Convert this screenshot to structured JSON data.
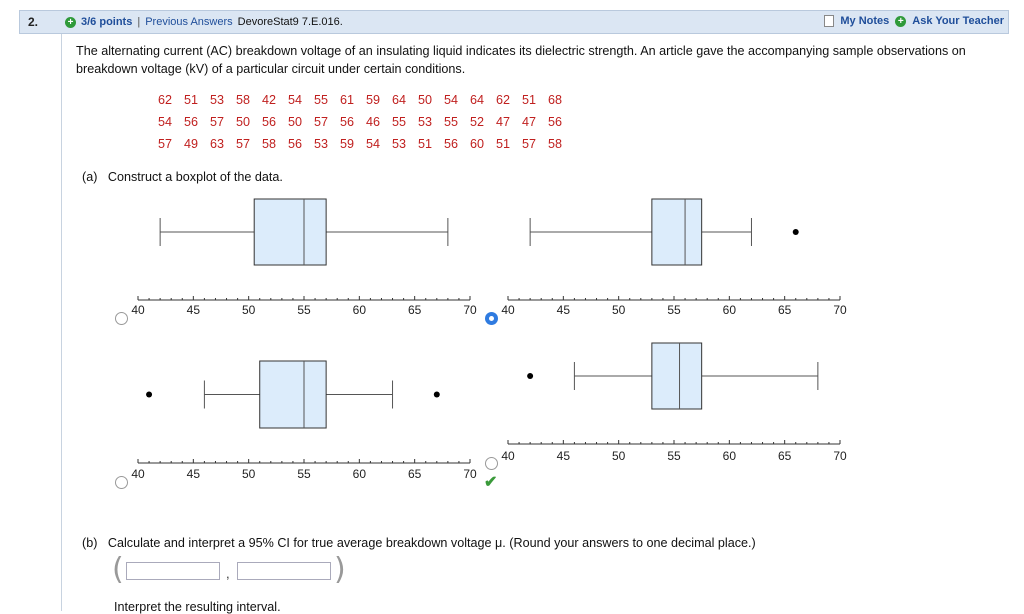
{
  "header": {
    "question_number": "2.",
    "points": "3/6 points",
    "separator": "|",
    "previous_answers": "Previous Answers",
    "source": "DevoreStat9 7.E.016.",
    "my_notes": "My Notes",
    "ask_teacher": "Ask Your Teacher"
  },
  "question": {
    "text": "The alternating current (AC) breakdown voltage of an insulating liquid indicates its dielectric strength. An article gave the accompanying sample observations on breakdown voltage (kV) of a particular circuit under certain conditions.",
    "data_rows": [
      [
        "62",
        "51",
        "53",
        "58",
        "42",
        "54",
        "55",
        "61",
        "59",
        "64",
        "50",
        "54",
        "64",
        "62",
        "51",
        "68"
      ],
      [
        "54",
        "56",
        "57",
        "50",
        "56",
        "50",
        "57",
        "56",
        "46",
        "55",
        "53",
        "55",
        "52",
        "47",
        "47",
        "56"
      ],
      [
        "57",
        "49",
        "63",
        "57",
        "58",
        "56",
        "53",
        "59",
        "54",
        "53",
        "51",
        "56",
        "60",
        "51",
        "57",
        "58"
      ]
    ]
  },
  "part_a": {
    "label": "(a)",
    "prompt": "Construct a boxplot of the data.",
    "axis_ticks": [
      "40",
      "45",
      "50",
      "55",
      "60",
      "65",
      "70"
    ],
    "options": [
      {
        "id": "A",
        "whisker_low": 42,
        "q1": 50.5,
        "median": 55,
        "q3": 57,
        "whisker_high": 68,
        "outliers": [],
        "selected": false,
        "correct": false
      },
      {
        "id": "B",
        "whisker_low": 42,
        "q1": 53,
        "median": 56,
        "q3": 57.5,
        "whisker_high": 62,
        "outliers": [
          66
        ],
        "selected": true,
        "correct": false
      },
      {
        "id": "C",
        "whisker_low": 46,
        "q1": 51,
        "median": 55,
        "q3": 57,
        "whisker_high": 63,
        "outliers": [
          41,
          67
        ],
        "selected": false,
        "correct": false
      },
      {
        "id": "D",
        "whisker_low": 46,
        "q1": 53,
        "median": 55.5,
        "q3": 57.5,
        "whisker_high": 68,
        "outliers": [
          42
        ],
        "selected": false,
        "correct": true
      }
    ]
  },
  "part_b": {
    "label": "(b)",
    "prompt": "Calculate and interpret a 95% CI for true average breakdown voltage μ. (Round your answers to one decimal place.)",
    "ci_lower_value": "",
    "ci_upper_value": "",
    "comma": ",",
    "open_paren": "(",
    "close_paren": ")",
    "interpret_label": "Interpret the resulting interval."
  },
  "colors": {
    "data_red": "#c0201f",
    "box_fill": "#dcecfb",
    "link_blue": "#1f4e9a",
    "radio_selected": "#2f7be0",
    "check_green": "#3a9a3a"
  }
}
